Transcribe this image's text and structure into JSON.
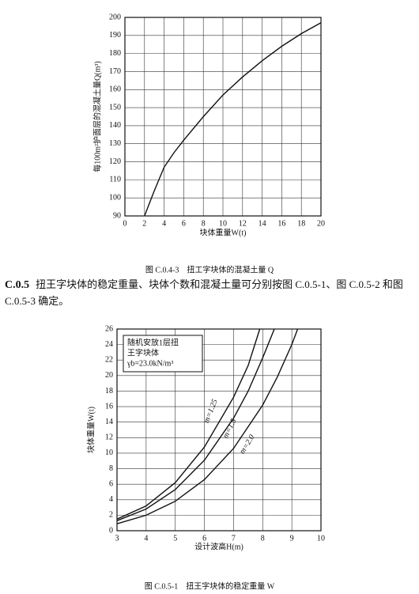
{
  "chart_data": [
    {
      "type": "line",
      "caption": "图 C.0.4-3　扭工字块体的混凝土量 Q",
      "xlabel": "块体重量W(t)",
      "ylabel": "每100m²护面层的混凝土量Q(m³)",
      "xlim": [
        0,
        20
      ],
      "xticks": [
        0,
        2,
        4,
        6,
        8,
        10,
        12,
        14,
        16,
        18,
        20
      ],
      "ylim": [
        90,
        200
      ],
      "yticks": [
        90,
        100,
        110,
        120,
        130,
        140,
        150,
        160,
        170,
        180,
        190,
        200
      ],
      "grid": true,
      "series": [
        {
          "color": "#111111",
          "x": [
            2,
            2.5,
            3,
            4,
            5,
            6,
            8,
            10,
            12,
            14,
            16,
            18,
            20
          ],
          "values": [
            90,
            97,
            104,
            117,
            125,
            132,
            145,
            157,
            167,
            176,
            184,
            191,
            197
          ]
        }
      ]
    },
    {
      "type": "line",
      "caption": "图 C.0.5-1　扭王字块体的稳定重量 W",
      "xlabel": "设计波高H(m)",
      "ylabel": "块体重量W(t)",
      "xlim": [
        3,
        10
      ],
      "xticks": [
        3,
        4,
        5,
        6,
        7,
        8,
        9,
        10
      ],
      "ylim": [
        0,
        26
      ],
      "yticks": [
        0,
        2,
        4,
        6,
        8,
        10,
        12,
        14,
        16,
        18,
        20,
        22,
        24,
        26
      ],
      "grid": true,
      "annotation": [
        "随机安放1层扭",
        "王字块体",
        "γb=23.0kN/m³"
      ],
      "series": [
        {
          "name": "m=1.25",
          "color": "#111111",
          "x": [
            3,
            4,
            5,
            6,
            7,
            7.5,
            7.9
          ],
          "values": [
            1.5,
            3.2,
            6.2,
            10.8,
            17.2,
            21.3,
            26
          ]
        },
        {
          "name": "m=1.5",
          "color": "#111111",
          "x": [
            3,
            4,
            5,
            6,
            7,
            7.5,
            8,
            8.4
          ],
          "values": [
            1.3,
            2.8,
            5.3,
            9.1,
            14.5,
            18,
            22.3,
            26
          ]
        },
        {
          "name": "m=2.0",
          "color": "#111111",
          "x": [
            3,
            4,
            5,
            6,
            7,
            8,
            8.5,
            9,
            9.2
          ],
          "values": [
            0.9,
            2.0,
            3.8,
            6.6,
            10.6,
            16.2,
            19.8,
            24,
            26
          ]
        }
      ]
    }
  ],
  "paragraph": {
    "number": "C.0.5",
    "text": "扭王字块体的稳定重量、块体个数和混凝土量可分别按图 C.0.5-1、图 C.0.5-2 和图 C.0.5-3 确定。"
  }
}
